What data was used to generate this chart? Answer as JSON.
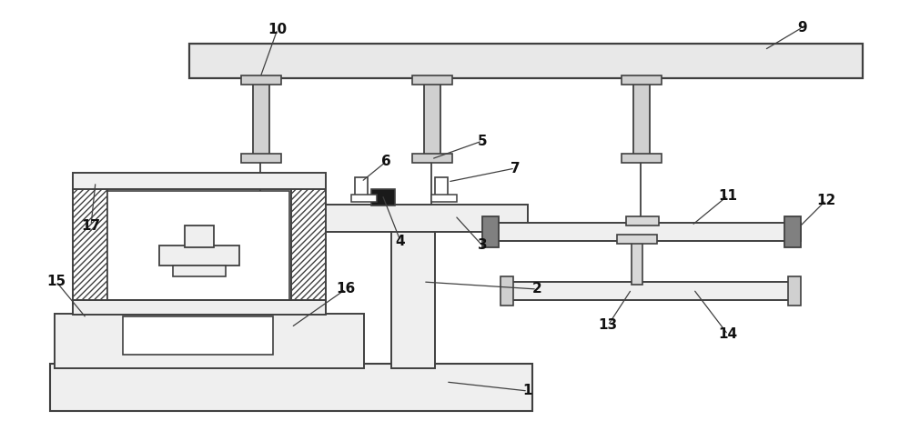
{
  "bg_color": "#ffffff",
  "line_color": "#404040",
  "label_color": "#111111",
  "label_fontsize": 11,
  "label_fontweight": "bold",
  "figsize": [
    10.0,
    4.74
  ],
  "dpi": 100
}
